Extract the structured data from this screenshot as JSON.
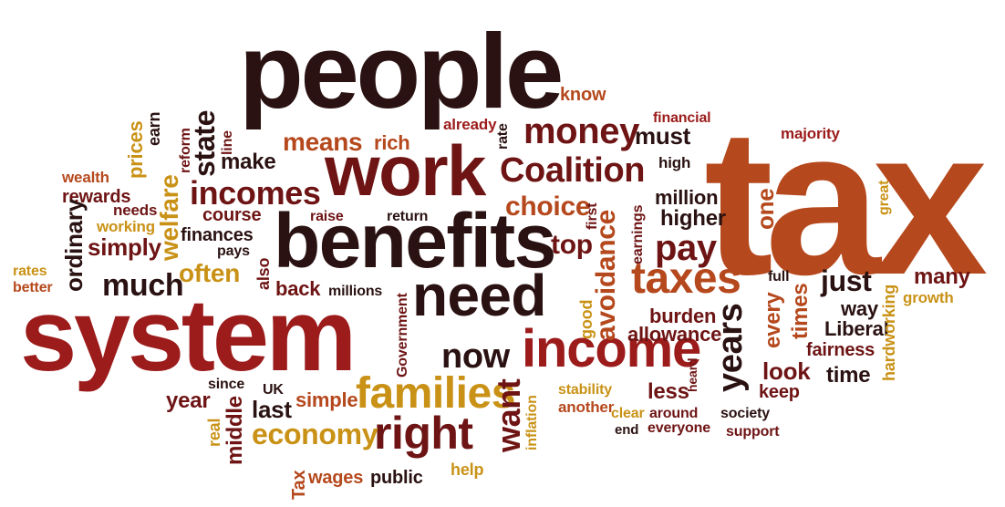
{
  "palette": {
    "dark": "#2b1212",
    "maroon": "#6e1414",
    "red": "#9c1b1b",
    "rust": "#b5481c",
    "orange": "#c8701a",
    "gold": "#c99216"
  },
  "words": {
    "tax": "tax",
    "people": "people",
    "system": "system",
    "benefits": "benefits",
    "work": "work",
    "need": "need",
    "income": "income",
    "taxes": "taxes",
    "families": "families",
    "right": "right",
    "coalition": "Coalition",
    "money": "money",
    "incomes": "incomes",
    "means": "means",
    "rich": "rich",
    "now": "now",
    "economy": "economy",
    "years": "years",
    "pay": "pay",
    "top": "top",
    "choice": "choice",
    "much": "much",
    "often": "often",
    "just": "just",
    "many": "many",
    "make": "make",
    "state": "state",
    "simply": "simply",
    "welfare": "welfare",
    "want": "want",
    "avoidance": "avoidance",
    "must": "must",
    "higher": "higher",
    "million": "million",
    "one": "one",
    "know": "know",
    "financial": "financial",
    "majority": "majority",
    "high": "high",
    "great": "great",
    "already": "already",
    "rate": "rate",
    "line": "line",
    "reform": "reform",
    "earn": "earn",
    "prices": "prices",
    "wealth": "wealth",
    "rewards": "rewards",
    "needs": "needs",
    "working": "working",
    "ordinary": "ordinary",
    "rates": "rates",
    "better": "better",
    "course": "course",
    "finances": "finances",
    "pays": "pays",
    "raise": "raise",
    "return": "return",
    "first": "first",
    "earnings": "earnings",
    "also": "also",
    "back": "back",
    "millions": "millions",
    "government": "Government",
    "good": "good",
    "burden": "burden",
    "allowance": "allowance",
    "every": "every",
    "times": "times",
    "full": "full",
    "way": "way",
    "liberal": "Liberal",
    "fairness": "fairness",
    "hardworking": "hardworking",
    "growth": "growth",
    "look": "look",
    "time": "time",
    "keep": "keep",
    "less": "less",
    "heard": "heard",
    "around": "around",
    "clear": "clear",
    "end": "end",
    "everyone": "everyone",
    "society": "society",
    "support": "support",
    "since": "since",
    "year": "year",
    "real": "real",
    "middle": "middle",
    "uk": "UK",
    "last": "last",
    "simple": "simple",
    "stability": "stability",
    "another": "another",
    "inflation": "inflation",
    "tax_small": "Tax",
    "wages": "wages",
    "public": "public",
    "help": "help"
  }
}
